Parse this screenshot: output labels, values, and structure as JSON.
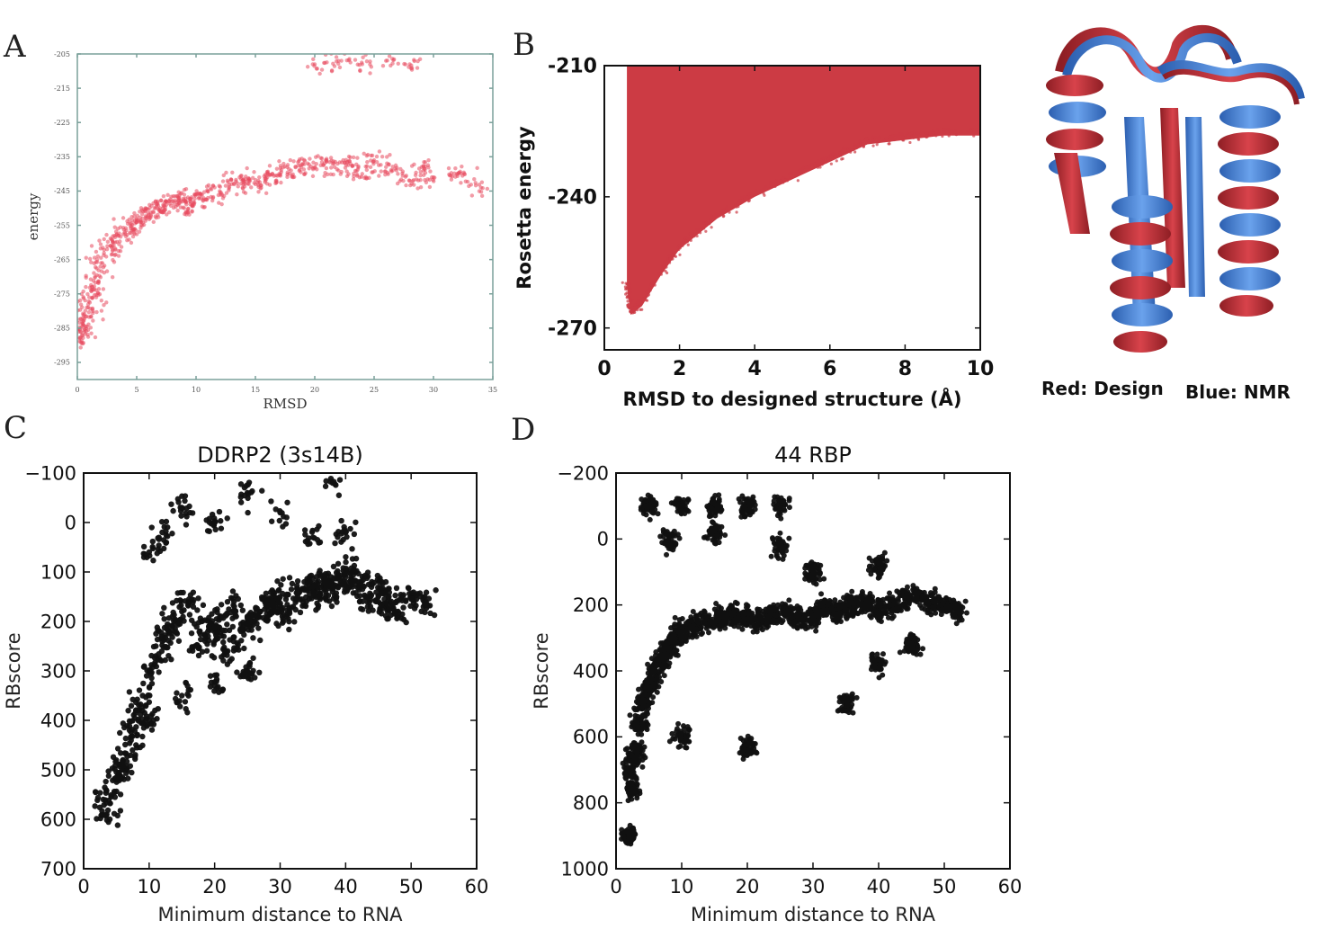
{
  "panel_labels": {
    "a": "A",
    "b": "B",
    "c": "C",
    "d": "D"
  },
  "structure": {
    "legend_red": "Red: Design",
    "legend_blue": "Blue: NMR",
    "colors": {
      "design": "#c8323a",
      "nmr": "#4a86d8"
    }
  },
  "chart_data": [
    {
      "id": "A",
      "type": "scatter",
      "title": "",
      "xlabel": "RMSD",
      "ylabel": "energy",
      "xlim": [
        0,
        35
      ],
      "ylim": [
        -300,
        -205
      ],
      "grid": false,
      "color": "#e84a5f",
      "points": [
        [
          0.1,
          -286
        ],
        [
          0.2,
          -288
        ],
        [
          0.3,
          -285
        ],
        [
          0.4,
          -287
        ],
        [
          0.5,
          -283
        ],
        [
          0.6,
          -281
        ],
        [
          0.8,
          -279
        ],
        [
          1.0,
          -276
        ],
        [
          1.2,
          -273
        ],
        [
          1.5,
          -270
        ],
        [
          2.0,
          -266
        ],
        [
          2.5,
          -262
        ],
        [
          3.0,
          -260
        ],
        [
          3.5,
          -258
        ],
        [
          4,
          -257
        ],
        [
          4.5,
          -256
        ],
        [
          5,
          -254
        ],
        [
          5.5,
          -253
        ],
        [
          6,
          -252
        ],
        [
          6.5,
          -250
        ],
        [
          7,
          -251
        ],
        [
          7.5,
          -249
        ],
        [
          8,
          -248
        ],
        [
          8.5,
          -247
        ],
        [
          9,
          -250
        ],
        [
          9.5,
          -248
        ],
        [
          10,
          -246
        ],
        [
          11,
          -247
        ],
        [
          12,
          -245
        ],
        [
          13,
          -243
        ],
        [
          14,
          -242
        ],
        [
          15,
          -243
        ],
        [
          16,
          -241
        ],
        [
          17,
          -240
        ],
        [
          18,
          -239
        ],
        [
          19,
          -237
        ],
        [
          20,
          -238
        ],
        [
          21,
          -236
        ],
        [
          22,
          -239
        ],
        [
          23,
          -237
        ],
        [
          24,
          -240
        ],
        [
          25,
          -236
        ],
        [
          26,
          -238
        ],
        [
          27,
          -240
        ],
        [
          28,
          -242
        ],
        [
          29,
          -238
        ],
        [
          30,
          -241
        ],
        [
          32,
          -240
        ],
        [
          34,
          -244
        ],
        [
          20,
          -208
        ],
        [
          22,
          -207
        ],
        [
          24,
          -208
        ],
        [
          26,
          -207
        ],
        [
          28,
          -208
        ]
      ],
      "xticks": [
        0,
        5,
        10,
        15,
        20,
        25,
        30,
        35
      ],
      "yticks": [
        -205,
        -215,
        -225,
        -235,
        -245,
        -255,
        -265,
        -275,
        -285,
        -295
      ]
    },
    {
      "id": "B",
      "type": "scatter",
      "title": "",
      "xlabel": "RMSD to designed structure (Å)",
      "ylabel": "Rosetta energy",
      "xlim": [
        0,
        10
      ],
      "ylim": [
        -275,
        -210
      ],
      "grid": false,
      "color": "#cc3b44",
      "upper_edge": -210,
      "lower_envelope": [
        [
          0.6,
          -260
        ],
        [
          0.7,
          -267
        ],
        [
          1.0,
          -265
        ],
        [
          1.5,
          -258
        ],
        [
          2.0,
          -252
        ],
        [
          3.0,
          -245
        ],
        [
          4.0,
          -240
        ],
        [
          5.0,
          -236
        ],
        [
          6.0,
          -232
        ],
        [
          7.0,
          -228
        ],
        [
          8.0,
          -227
        ],
        [
          9.0,
          -226
        ],
        [
          10.0,
          -226
        ]
      ],
      "xticks": [
        0,
        2,
        4,
        6,
        8,
        10
      ],
      "yticks": [
        -210,
        -240,
        -270
      ]
    },
    {
      "id": "C",
      "type": "scatter",
      "title": "DDRP2 (3s14B)",
      "xlabel": "Minimum distance to RNA",
      "ylabel": "RBscore",
      "xlim": [
        0,
        60
      ],
      "ylim": [
        -100,
        700
      ],
      "y_inverted": true,
      "grid": false,
      "color": "#111111",
      "points": [
        [
          3,
          560
        ],
        [
          4,
          600
        ],
        [
          5,
          520
        ],
        [
          6,
          480
        ],
        [
          7,
          420
        ],
        [
          8,
          380
        ],
        [
          9,
          350
        ],
        [
          10,
          300
        ],
        [
          11,
          270
        ],
        [
          12,
          240
        ],
        [
          13,
          220
        ],
        [
          14,
          200
        ],
        [
          15,
          180
        ],
        [
          16,
          160
        ],
        [
          17,
          250
        ],
        [
          18,
          200
        ],
        [
          19,
          230
        ],
        [
          20,
          210
        ],
        [
          21,
          190
        ],
        [
          22,
          260
        ],
        [
          23,
          170
        ],
        [
          24,
          220
        ],
        [
          25,
          190
        ],
        [
          26,
          200
        ],
        [
          27,
          180
        ],
        [
          28,
          160
        ],
        [
          29,
          170
        ],
        [
          30,
          150
        ],
        [
          31,
          190
        ],
        [
          32,
          170
        ],
        [
          33,
          140
        ],
        [
          34,
          160
        ],
        [
          35,
          130
        ],
        [
          36,
          150
        ],
        [
          37,
          120
        ],
        [
          38,
          140
        ],
        [
          39,
          110
        ],
        [
          40,
          120
        ],
        [
          41,
          100
        ],
        [
          42,
          130
        ],
        [
          43,
          150
        ],
        [
          44,
          120
        ],
        [
          45,
          160
        ],
        [
          46,
          140
        ],
        [
          47,
          170
        ],
        [
          48,
          180
        ],
        [
          50,
          150
        ],
        [
          52,
          160
        ],
        [
          10,
          60
        ],
        [
          12,
          20
        ],
        [
          15,
          -30
        ],
        [
          20,
          0
        ],
        [
          25,
          -60
        ],
        [
          30,
          -20
        ],
        [
          35,
          30
        ],
        [
          38,
          -80
        ],
        [
          40,
          20
        ],
        [
          6,
          500
        ],
        [
          8,
          450
        ],
        [
          10,
          400
        ],
        [
          15,
          350
        ],
        [
          20,
          330
        ],
        [
          25,
          300
        ]
      ],
      "xticks": [
        0,
        10,
        20,
        30,
        40,
        50,
        60
      ],
      "yticks": [
        -100,
        0,
        100,
        200,
        300,
        400,
        500,
        600,
        700
      ]
    },
    {
      "id": "D",
      "type": "scatter",
      "title": "44 RBP",
      "xlabel": "Minimum distance to RNA",
      "ylabel": "RBscore",
      "xlim": [
        0,
        60
      ],
      "ylim": [
        -200,
        1000
      ],
      "y_inverted": true,
      "grid": false,
      "color": "#111111",
      "points": [
        [
          2,
          700
        ],
        [
          2.5,
          760
        ],
        [
          3,
          650
        ],
        [
          3.5,
          560
        ],
        [
          4,
          500
        ],
        [
          5,
          450
        ],
        [
          6,
          400
        ],
        [
          7,
          360
        ],
        [
          8,
          330
        ],
        [
          9,
          300
        ],
        [
          10,
          280
        ],
        [
          12,
          260
        ],
        [
          14,
          250
        ],
        [
          16,
          240
        ],
        [
          18,
          230
        ],
        [
          20,
          240
        ],
        [
          22,
          250
        ],
        [
          24,
          230
        ],
        [
          26,
          220
        ],
        [
          28,
          240
        ],
        [
          30,
          230
        ],
        [
          32,
          210
        ],
        [
          34,
          220
        ],
        [
          36,
          200
        ],
        [
          38,
          190
        ],
        [
          40,
          210
        ],
        [
          42,
          200
        ],
        [
          44,
          180
        ],
        [
          46,
          170
        ],
        [
          48,
          190
        ],
        [
          50,
          200
        ],
        [
          52,
          220
        ],
        [
          2,
          900
        ],
        [
          10,
          600
        ],
        [
          20,
          640
        ],
        [
          35,
          500
        ],
        [
          40,
          380
        ],
        [
          45,
          320
        ],
        [
          5,
          -100
        ],
        [
          10,
          -100
        ],
        [
          15,
          -100
        ],
        [
          20,
          -100
        ],
        [
          25,
          -100
        ],
        [
          8,
          0
        ],
        [
          15,
          -20
        ],
        [
          25,
          20
        ],
        [
          30,
          100
        ],
        [
          40,
          80
        ]
      ],
      "xticks": [
        0,
        10,
        20,
        30,
        40,
        50,
        60
      ],
      "yticks": [
        -200,
        0,
        200,
        400,
        600,
        800,
        1000
      ]
    }
  ]
}
